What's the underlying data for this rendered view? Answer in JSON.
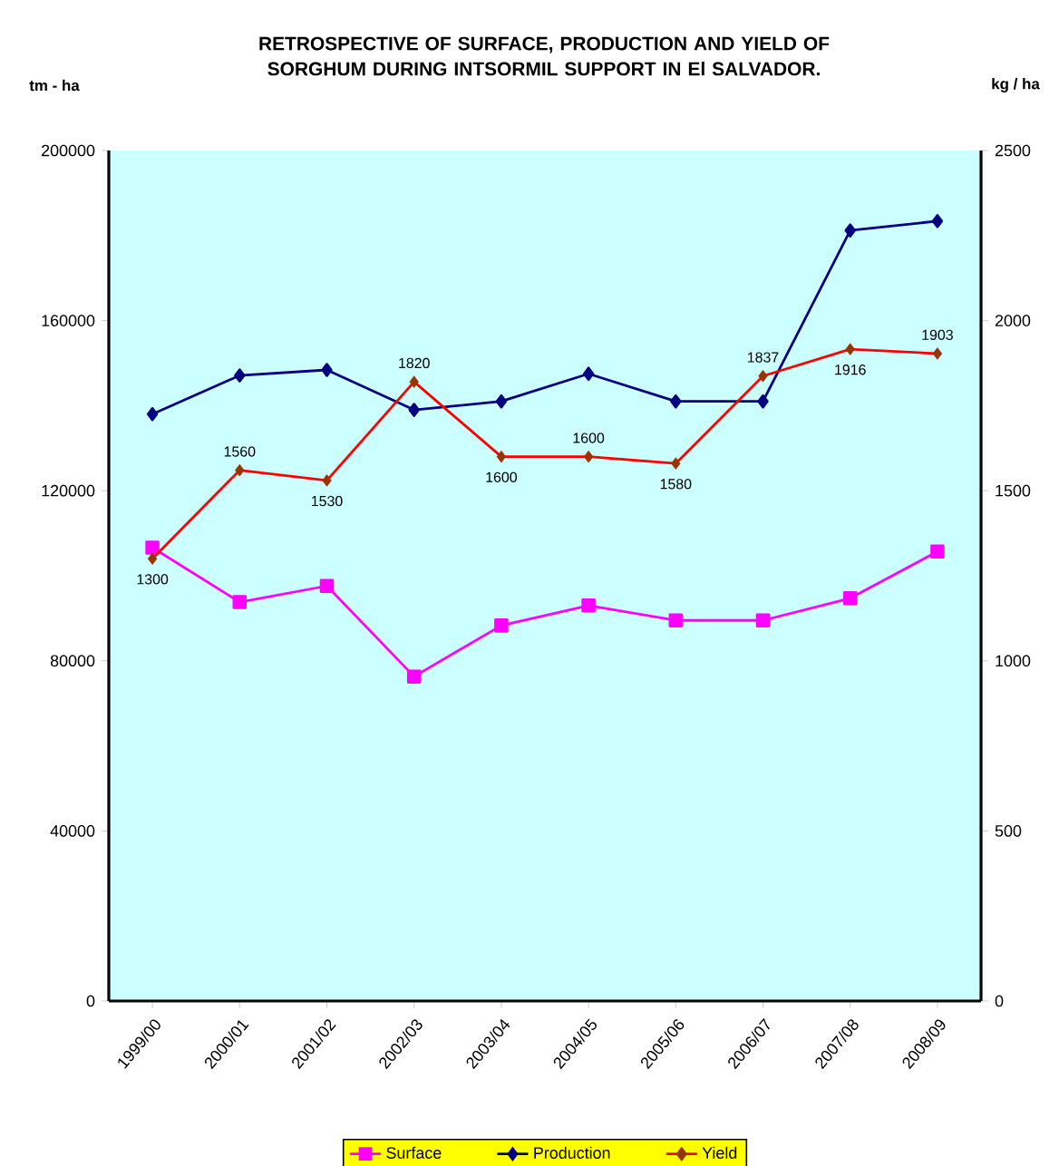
{
  "chart_data": {
    "type": "line",
    "title": "RETROSPECTIVE OF SURFACE, PRODUCTION AND YIELD OF SORGHUM DURING INTSORMIL SUPPORT IN El SALVADOR.",
    "ylabel": "tm - ha",
    "y2label": "kg / ha",
    "categories": [
      "1999/00",
      "2000/01",
      "2001/02",
      "2002/03",
      "2003/04",
      "2004/05",
      "2005/06",
      "2006/07",
      "2007/08",
      "2008/09"
    ],
    "series": [
      {
        "name": "Surface",
        "color": "#ff00ff",
        "marker": "square",
        "values": [
          106600,
          93800,
          97600,
          76300,
          88300,
          93000,
          89500,
          89500,
          94700,
          105700
        ]
      },
      {
        "name": "Production",
        "color": "#000080",
        "marker": "diamond",
        "values": [
          138000,
          147100,
          148400,
          139000,
          141000,
          147500,
          141000,
          141000,
          181200,
          183400
        ]
      },
      {
        "name": "Yield",
        "color": "#ff0000",
        "colors": [
          "#993300",
          "#993300",
          "#993300",
          "#993300",
          "#993300",
          "#993300",
          "#993300",
          "#993300",
          "#993300",
          "#993300"
        ],
        "marker": "diamond",
        "axis": "y2",
        "data_labels": true,
        "values": [
          1300,
          1560,
          1530,
          1820,
          1600,
          1600,
          1580,
          1837,
          1916,
          1903
        ]
      }
    ],
    "ylim": [
      0,
      200000
    ],
    "yticks": [
      0,
      40000,
      80000,
      120000,
      160000,
      200000
    ],
    "y2lim": [
      0,
      2500
    ],
    "y2ticks": [
      0,
      500,
      1000,
      1500,
      2000,
      2500
    ],
    "grid": false,
    "legend": "bottom"
  }
}
